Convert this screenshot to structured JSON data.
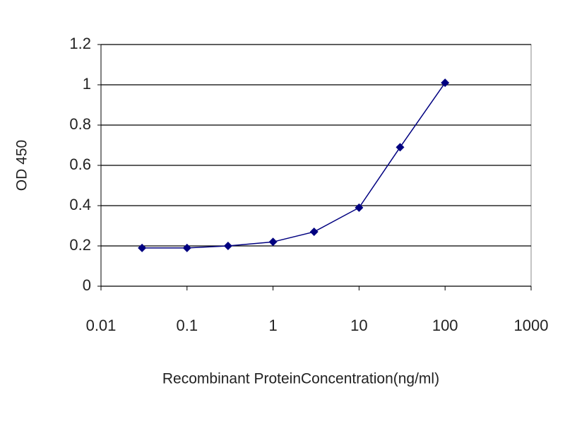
{
  "chart_data": {
    "type": "line",
    "xlabel": "Recombinant ProteinConcentration(ng/ml)",
    "ylabel": "OD 450",
    "xscale": "log",
    "x": [
      0.03,
      0.1,
      0.3,
      1,
      3,
      10,
      30,
      100
    ],
    "series": [
      {
        "color": "#000080",
        "values": [
          0.19,
          0.19,
          0.2,
          0.22,
          0.27,
          0.39,
          0.69,
          1.01
        ]
      }
    ],
    "xlim": [
      0.01,
      1000
    ],
    "xticks": [
      0.01,
      0.1,
      1,
      10,
      100,
      1000
    ],
    "ylim": [
      0,
      1.2
    ],
    "yticks": [
      0,
      0.2,
      0.4,
      0.6,
      0.8,
      1,
      1.2
    ],
    "grid": true
  }
}
